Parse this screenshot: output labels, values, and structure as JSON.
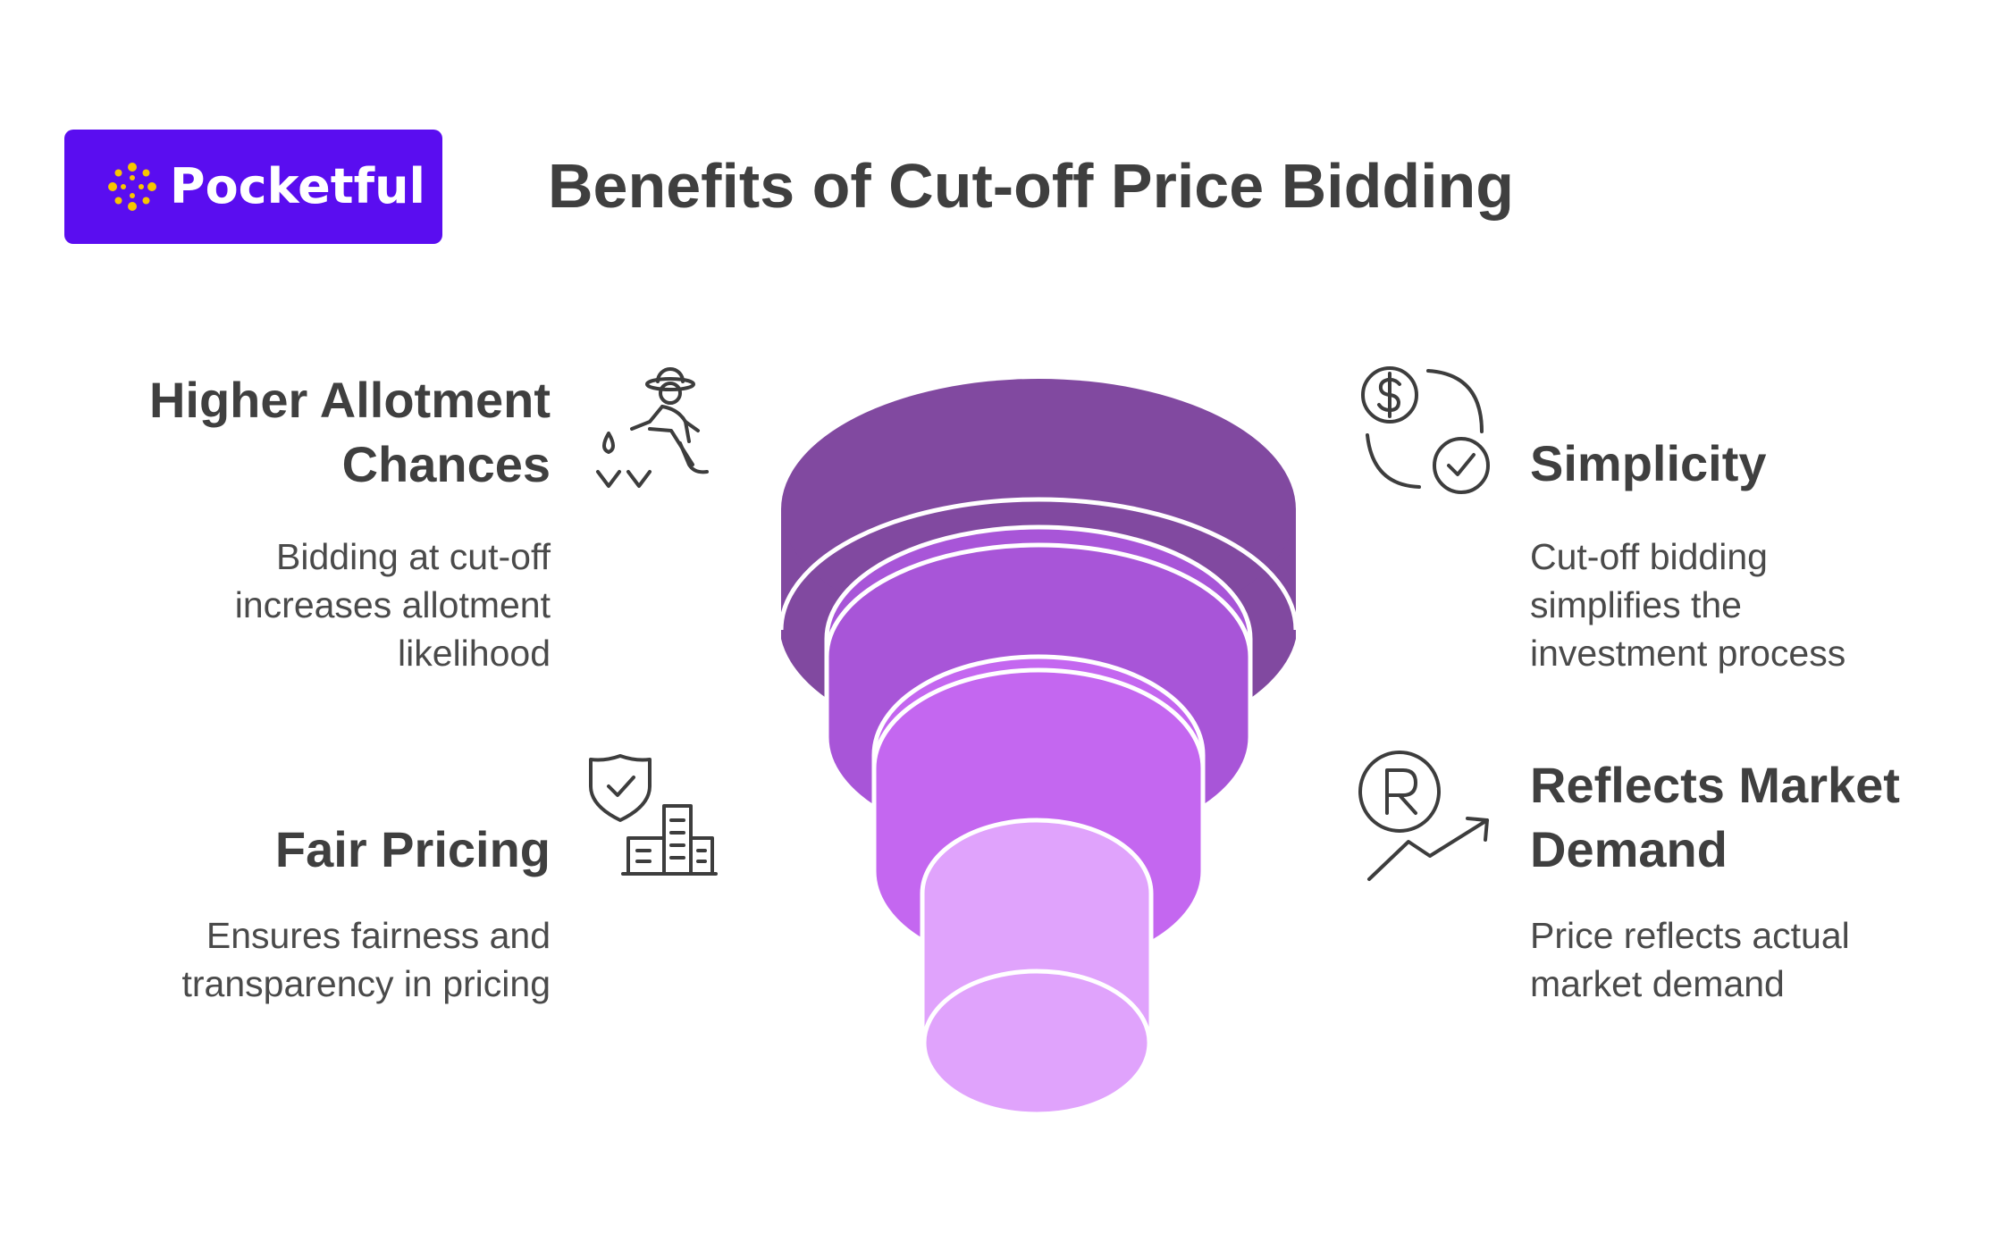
{
  "brand": {
    "name": "Pocketful",
    "color": "#5a0df0",
    "mark_color": "#f7c600",
    "mark_icon": "sparkle-logo-icon"
  },
  "title": "Benefits of Cut-off Price Bidding",
  "benefits": [
    {
      "heading_line1": "Higher Allotment",
      "heading_line2": "Chances",
      "description_lines": [
        "Bidding at cut-off",
        "increases allotment",
        "likelihood"
      ],
      "icon": "farmer-planting-icon"
    },
    {
      "heading_line1": "Fair Pricing",
      "description_lines": [
        "Ensures fairness and",
        "transparency in pricing"
      ],
      "icon": "shield-check-buildings-icon"
    },
    {
      "heading_line1": "Simplicity",
      "description_lines": [
        "Cut-off bidding",
        "simplifies the",
        "investment process"
      ],
      "icon": "dollar-check-cycle-icon"
    },
    {
      "heading_line1": "Reflects Market",
      "heading_line2": "Demand",
      "description_lines": [
        "Price reflects actual",
        "market demand"
      ],
      "icon": "rupee-trend-up-icon"
    }
  ],
  "funnel_colors": [
    "#8149a0",
    "#a855d8",
    "#c467f0",
    "#e0a3fc"
  ]
}
